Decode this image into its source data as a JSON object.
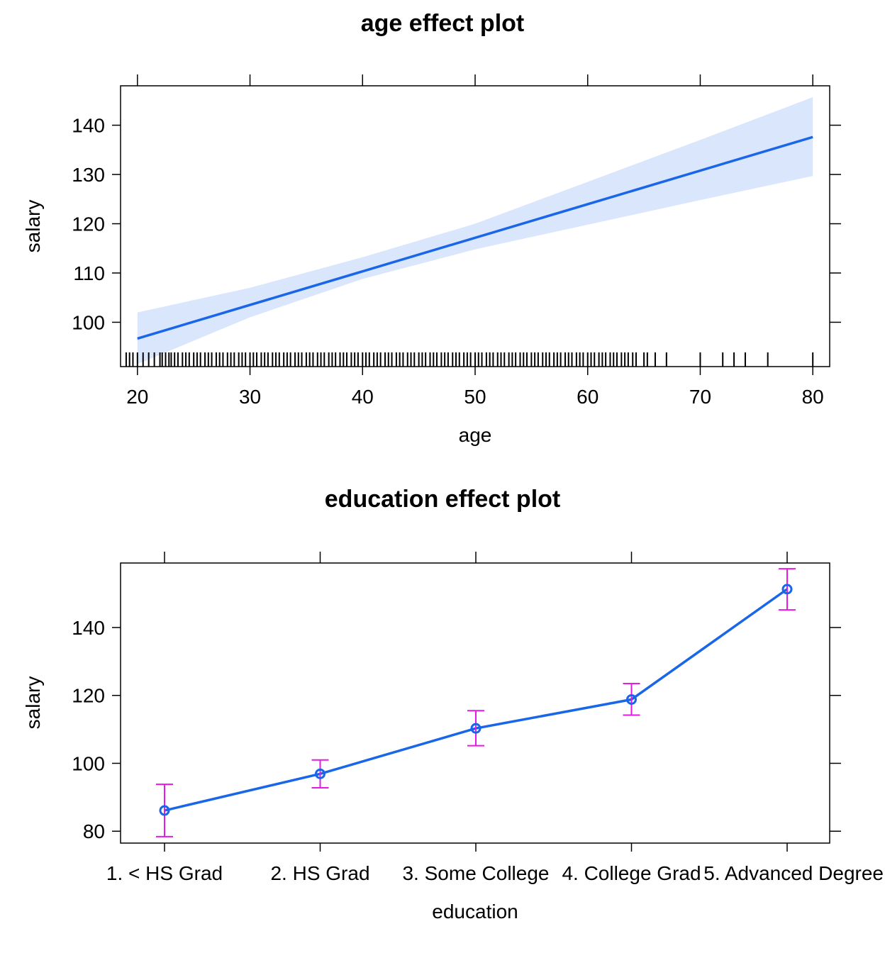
{
  "chart_data": [
    {
      "type": "line",
      "title": "age effect plot",
      "xlabel": "age",
      "ylabel": "salary",
      "xlim": [
        18.5,
        81.5
      ],
      "ylim": [
        91,
        148
      ],
      "x_ticks": [
        20,
        30,
        40,
        50,
        60,
        70,
        80
      ],
      "y_ticks": [
        100,
        110,
        120,
        130,
        140
      ],
      "series": [
        {
          "x": [
            20,
            80
          ],
          "y": [
            96.7,
            137.6
          ]
        }
      ],
      "confidence_band": {
        "x": [
          20,
          30,
          40,
          50,
          60,
          70,
          80
        ],
        "lower": [
          91.5,
          101.0,
          108.8,
          114.8,
          119.8,
          124.8,
          129.7
        ],
        "upper": [
          102.0,
          107.0,
          113.2,
          120.0,
          128.5,
          137.0,
          145.7
        ]
      },
      "rug": [
        19,
        19.3,
        19.6,
        20,
        20.5,
        21,
        21.5,
        22,
        22.2,
        22.5,
        22.8,
        23,
        23.3,
        23.6,
        24,
        24.3,
        24.6,
        25,
        25.3,
        25.6,
        26,
        26.3,
        26.6,
        27,
        27.3,
        27.6,
        28,
        28.3,
        28.6,
        29,
        29.3,
        29.6,
        30,
        30.3,
        30.6,
        31,
        31.3,
        31.6,
        32,
        32.3,
        32.6,
        33,
        33.3,
        33.6,
        34,
        34.3,
        34.6,
        35,
        35.3,
        35.6,
        36,
        36.3,
        36.6,
        37,
        37.3,
        37.6,
        38,
        38.3,
        38.6,
        39,
        39.3,
        39.6,
        40,
        40.3,
        40.6,
        41,
        41.3,
        41.6,
        42,
        42.3,
        42.6,
        43,
        43.3,
        43.6,
        44,
        44.3,
        44.6,
        45,
        45.3,
        45.6,
        46,
        46.3,
        46.6,
        47,
        47.3,
        47.6,
        48,
        48.3,
        48.6,
        49,
        49.3,
        49.6,
        50,
        50.3,
        50.6,
        51,
        51.3,
        51.6,
        52,
        52.3,
        52.6,
        53,
        53.3,
        53.6,
        54,
        54.3,
        54.6,
        55,
        55.3,
        55.6,
        56,
        56.3,
        56.6,
        57,
        57.3,
        57.6,
        58,
        58.3,
        58.6,
        59,
        59.3,
        59.6,
        60,
        60.3,
        60.6,
        61,
        61.3,
        61.6,
        62,
        62.3,
        62.6,
        63,
        63.3,
        63.6,
        64,
        64.3,
        65,
        65.3,
        66,
        67,
        70,
        72,
        73,
        74,
        76,
        80
      ],
      "colors": {
        "line": "#1a66e8",
        "band": "#d9e6fc"
      }
    },
    {
      "type": "line",
      "title": "education effect plot",
      "xlabel": "education",
      "ylabel": "salary",
      "categories": [
        "1. < HS Grad",
        "2. HS Grad",
        "3. Some College",
        "4. College Grad",
        "5. Advanced Degree"
      ],
      "ylim": [
        76.5,
        159
      ],
      "y_ticks": [
        80,
        100,
        120,
        140
      ],
      "series": [
        {
          "values": [
            86.1,
            96.9,
            110.3,
            118.8,
            151.3
          ],
          "lower": [
            78.4,
            92.8,
            105.2,
            114.2,
            145.2
          ],
          "upper": [
            93.8,
            101.0,
            115.5,
            123.5,
            157.3
          ]
        }
      ],
      "colors": {
        "line": "#1a66e8",
        "errorbar": "#e619e6"
      }
    }
  ]
}
